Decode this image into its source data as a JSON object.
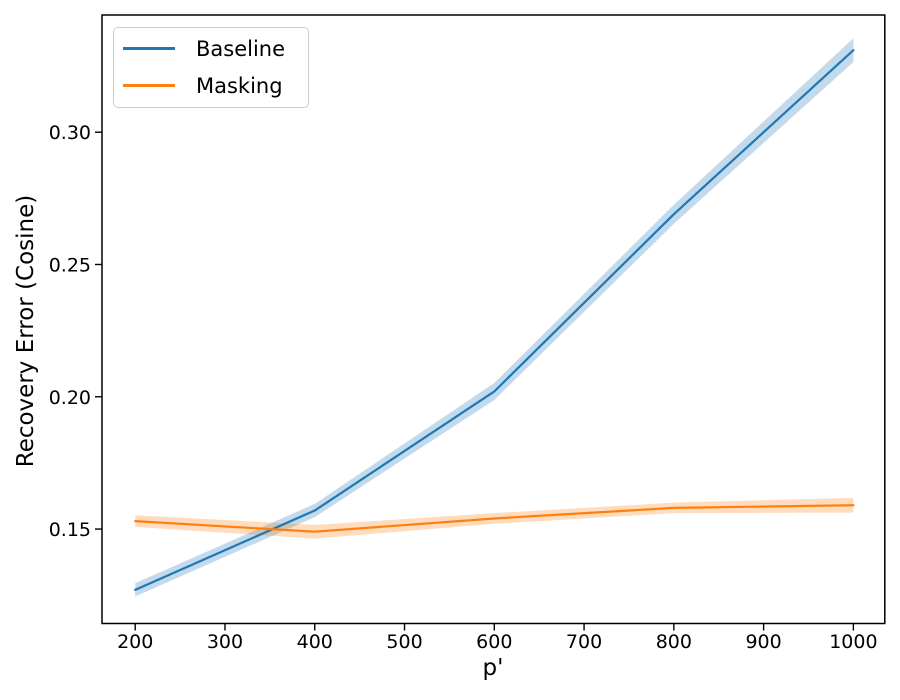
{
  "figure": {
    "xlabel": "p'",
    "ylabel": "Recovery Error (Cosine)",
    "background_color": "#ffffff",
    "text_color": "#000000",
    "spine_color": "#000000"
  },
  "legend": {
    "position": "upper-left",
    "entries": [
      {
        "label": "Baseline",
        "color": "#1f77b4"
      },
      {
        "label": "Masking",
        "color": "#ff7f0e"
      }
    ]
  },
  "chart_data": {
    "type": "line",
    "title": "",
    "xlabel": "p'",
    "ylabel": "Recovery Error (Cosine)",
    "x": [
      200,
      400,
      600,
      800,
      1000
    ],
    "series": [
      {
        "name": "Baseline",
        "color": "#1f77b4",
        "values": [
          0.127,
          0.157,
          0.202,
          0.269,
          0.331
        ],
        "ci_halfwidth": [
          0.0025,
          0.0025,
          0.0032,
          0.0036,
          0.0045
        ]
      },
      {
        "name": "Masking",
        "color": "#ff7f0e",
        "values": [
          0.153,
          0.149,
          0.154,
          0.158,
          0.159
        ],
        "ci_halfwidth": [
          0.0022,
          0.0026,
          0.002,
          0.002,
          0.0028
        ]
      }
    ],
    "band_alpha": 0.27,
    "line_width": 2.2,
    "xlim": [
      163,
      1035
    ],
    "ylim": [
      0.1143,
      0.3443
    ],
    "x_ticks": [
      200,
      300,
      400,
      500,
      600,
      700,
      800,
      900,
      1000
    ],
    "x_tick_labels": [
      "200",
      "300",
      "400",
      "500",
      "600",
      "700",
      "800",
      "900",
      "1000"
    ],
    "y_ticks": [
      0.15,
      0.2,
      0.25,
      0.3
    ],
    "y_tick_labels": [
      "0.15",
      "0.20",
      "0.25",
      "0.30"
    ],
    "grid": false,
    "legend_position": "upper left"
  }
}
